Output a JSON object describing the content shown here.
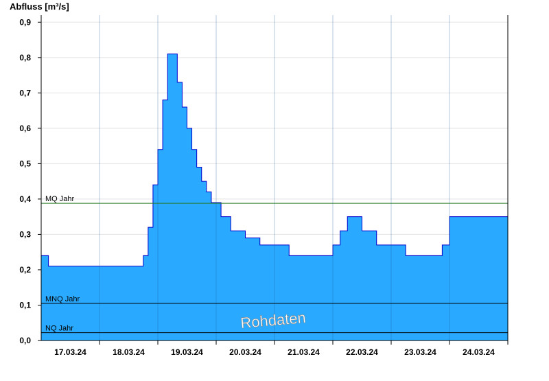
{
  "chart_data": {
    "type": "area",
    "ylabel": "Abfluss [m³/s]",
    "ylim": [
      0,
      0.92
    ],
    "yticks": [
      "0,0",
      "0,1",
      "0,2",
      "0,3",
      "0,4",
      "0,5",
      "0,6",
      "0,7",
      "0,8",
      "0,9"
    ],
    "yticks_values": [
      0,
      0.1,
      0.2,
      0.3,
      0.4,
      0.5,
      0.6,
      0.7,
      0.8,
      0.9
    ],
    "xlim": [
      "17.03.24 00:00",
      "24.03.24 24:00"
    ],
    "xticks": [
      "17.03.24",
      "18.03.24",
      "19.03.24",
      "20.03.24",
      "21.03.24",
      "22.03.24",
      "23.03.24",
      "24.03.24"
    ],
    "grid": true,
    "series": [
      {
        "x": [
          "17.03.24 00:00",
          "17.03.24 03:00",
          "17.03.24 06:00",
          "17.03.24 12:00",
          "17.03.24 18:00",
          "18.03.24 00:00",
          "18.03.24 06:00",
          "18.03.24 12:00",
          "18.03.24 15:00",
          "18.03.24 18:00",
          "18.03.24 20:00",
          "18.03.24 22:00",
          "19.03.24 00:00",
          "19.03.24 02:00",
          "19.03.24 04:00",
          "19.03.24 06:00",
          "19.03.24 08:00",
          "19.03.24 10:00",
          "19.03.24 12:00",
          "19.03.24 14:00",
          "19.03.24 16:00",
          "19.03.24 18:00",
          "19.03.24 20:00",
          "19.03.24 22:00",
          "20.03.24 00:00",
          "20.03.24 02:00",
          "20.03.24 06:00",
          "20.03.24 12:00",
          "20.03.24 18:00",
          "21.03.24 00:00",
          "21.03.24 06:00",
          "21.03.24 12:00",
          "21.03.24 18:00",
          "21.03.24 21:00",
          "22.03.24 00:00",
          "22.03.24 03:00",
          "22.03.24 06:00",
          "22.03.24 12:00",
          "22.03.24 18:00",
          "23.03.24 00:00",
          "23.03.24 06:00",
          "23.03.24 12:00",
          "23.03.24 15:00",
          "23.03.24 18:00",
          "23.03.24 21:00",
          "24.03.24 00:00",
          "24.03.24 06:00",
          "24.03.24 12:00",
          "24.03.24 18:00",
          "24.03.24 24:00"
        ],
        "values": [
          0.24,
          0.21,
          0.21,
          0.21,
          0.21,
          0.21,
          0.21,
          0.21,
          0.21,
          0.24,
          0.32,
          0.44,
          0.54,
          0.68,
          0.81,
          0.81,
          0.73,
          0.66,
          0.6,
          0.54,
          0.49,
          0.45,
          0.42,
          0.39,
          0.39,
          0.35,
          0.31,
          0.29,
          0.27,
          0.27,
          0.24,
          0.24,
          0.24,
          0.24,
          0.27,
          0.31,
          0.35,
          0.31,
          0.27,
          0.27,
          0.24,
          0.24,
          0.24,
          0.24,
          0.27,
          0.35,
          0.35,
          0.35,
          0.35,
          0.31
        ]
      }
    ],
    "reference_lines": [
      {
        "name": "MQ Jahr",
        "value": 0.388
      },
      {
        "name": "MNQ Jahr",
        "value": 0.105
      },
      {
        "name": "NQ Jahr",
        "value": 0.022
      }
    ],
    "annotation": "Rohdaten",
    "colors": {
      "fill": "#29a9ff",
      "line": "#0000cc",
      "mq_line": "#2a7a2a",
      "ref_line": "#000000"
    }
  }
}
